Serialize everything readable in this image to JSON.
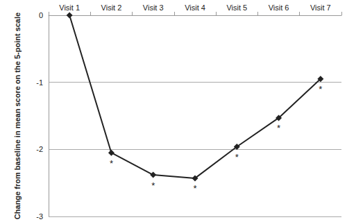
{
  "chart_data": {
    "type": "line",
    "y_label": "Change from baseline in mean score on the 5-point scale",
    "categories": [
      "Visit 1",
      "Visit 2",
      "Visit 3",
      "Visit 4",
      "Visit 5",
      "Visit 6",
      "Visit 7"
    ],
    "values": [
      0,
      -2.05,
      -2.38,
      -2.43,
      -1.96,
      -1.53,
      -0.95
    ],
    "color": "#222222",
    "marker": "diamond",
    "line_style": "solid",
    "ylim": [
      -3,
      0
    ],
    "yticks": [
      -3,
      -2,
      -1,
      0
    ],
    "grid": true,
    "annotations": [
      {
        "category": "Visit 2",
        "text": "*"
      },
      {
        "category": "Visit 3",
        "text": "*"
      },
      {
        "category": "Visit 4",
        "text": "*"
      },
      {
        "category": "Visit 5",
        "text": "*"
      },
      {
        "category": "Visit 6",
        "text": "*"
      },
      {
        "category": "Visit 7",
        "text": "*"
      }
    ]
  }
}
